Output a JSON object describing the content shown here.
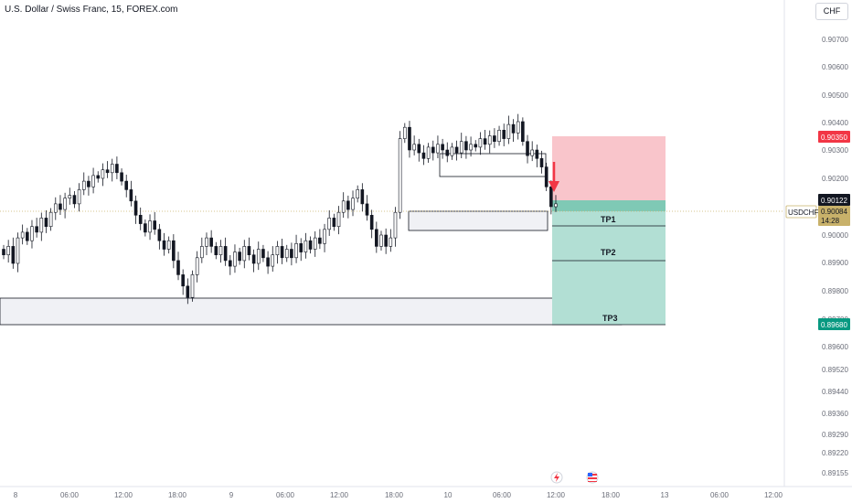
{
  "header": {
    "title": "U.S. Dollar / Swiss Franc, 15, FOREX.com",
    "currency": "CHF"
  },
  "chart_data": {
    "type": "candlestick",
    "symbol": "USDCHF",
    "y_ticks": [
      "0.90700",
      "0.90600",
      "0.90500",
      "0.90400",
      "0.90300",
      "0.90200",
      "0.90000",
      "0.89900",
      "0.89800",
      "0.89700",
      "0.89600",
      "0.89520",
      "0.89440",
      "0.89360",
      "0.89290",
      "0.89220",
      "0.89155"
    ],
    "x_ticks": [
      "8",
      "06:00",
      "12:00",
      "18:00",
      "9",
      "06:00",
      "12:00",
      "18:00",
      "10",
      "06:00",
      "12:00",
      "18:00",
      "13",
      "06:00",
      "12:00"
    ],
    "price_line": 0.90122,
    "price_labels": {
      "stop": "0.90350",
      "entry": "0.90122",
      "symbol": "USDCHF",
      "current": "0.90084",
      "countdown": "14:28",
      "target": "0.89680"
    },
    "targets": [
      {
        "label": "TP1"
      },
      {
        "label": "TP2"
      },
      {
        "label": "TP3"
      }
    ],
    "colors": {
      "up": "#131722",
      "down": "#131722",
      "stop_zone": "#f9c5cb",
      "target_zone": "#b2dfd4",
      "entry_band": "#7fc9b5",
      "stop_tag": "#f23645",
      "target_tag": "#089981",
      "symbol_tag": "#c8b16a",
      "arrow": "#f23645"
    },
    "closes": [
      0.8993,
      0.8996,
      0.899,
      0.8999,
      0.9001,
      0.8998,
      0.9003,
      0.9001,
      0.9006,
      0.9003,
      0.9008,
      0.9011,
      0.9009,
      0.9013,
      0.9014,
      0.9011,
      0.9016,
      0.9019,
      0.9017,
      0.9021,
      0.902,
      0.9023,
      0.9022,
      0.9025,
      0.9022,
      0.9019,
      0.9016,
      0.9012,
      0.9007,
      0.9004,
      0.9001,
      0.9005,
      0.9002,
      0.8998,
      0.8995,
      0.8998,
      0.8991,
      0.8986,
      0.8982,
      0.8978,
      0.8986,
      0.8992,
      0.8996,
      0.8999,
      0.8996,
      0.8993,
      0.8996,
      0.8991,
      0.8989,
      0.8994,
      0.8991,
      0.8996,
      0.8993,
      0.899,
      0.8995,
      0.8992,
      0.8989,
      0.8993,
      0.8996,
      0.8992,
      0.8995,
      0.8992,
      0.8997,
      0.8994,
      0.8998,
      0.8995,
      0.8999,
      0.8997,
      0.9002,
      0.9006,
      0.9003,
      0.9008,
      0.9012,
      0.9009,
      0.9013,
      0.9016,
      0.9011,
      0.9007,
      0.9002,
      0.8996,
      0.9,
      0.8996,
      0.8999,
      0.9008,
      0.9034,
      0.9038,
      0.903,
      0.9032,
      0.9029,
      0.9027,
      0.9031,
      0.9029,
      0.9032,
      0.903,
      0.9028,
      0.9031,
      0.9029,
      0.9033,
      0.903,
      0.9032,
      0.9031,
      0.9034,
      0.9032,
      0.9035,
      0.9033,
      0.9037,
      0.9034,
      0.9039,
      0.9036,
      0.904,
      0.9033,
      0.9028,
      0.903,
      0.9027,
      0.9024,
      0.9017,
      0.901,
      0.9011
    ]
  }
}
